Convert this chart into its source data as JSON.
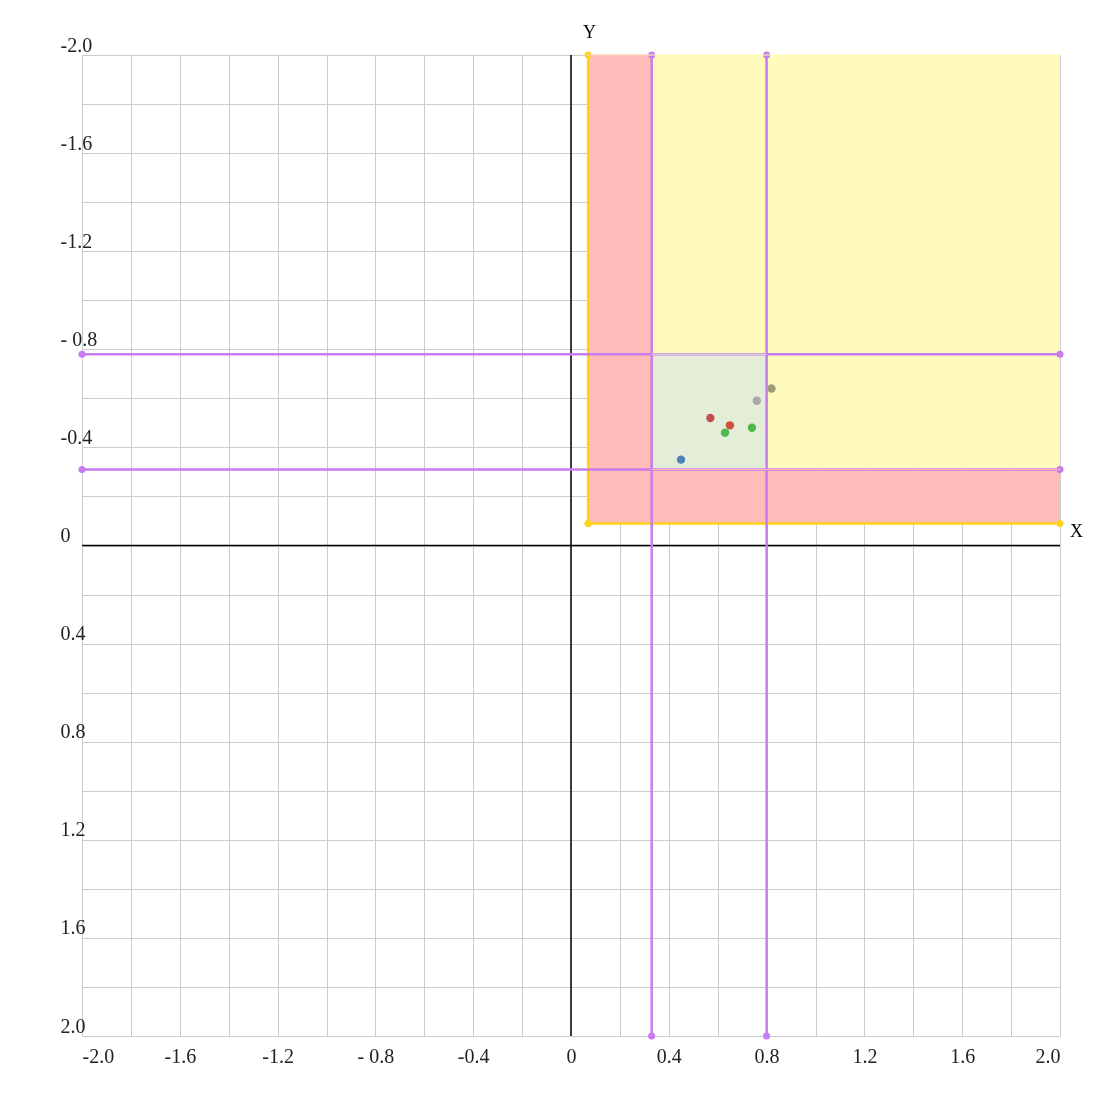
{
  "chart_data": {
    "type": "scatter",
    "xlabel": "X",
    "ylabel": "Y",
    "xlim": [
      -2.0,
      2.0
    ],
    "ylim": [
      2.0,
      -2.0
    ],
    "xticks": [
      {
        "value": -2.0,
        "label": "-2.0"
      },
      {
        "value": -1.8,
        "label": null
      },
      -1.6,
      {
        "value": -1.4,
        "label": null
      },
      -1.2,
      {
        "value": -1.0,
        "label": null
      },
      {
        "value": -0.8,
        "label": "- 0.8"
      },
      {
        "value": -0.6,
        "label": null
      },
      -0.4,
      {
        "value": -0.2,
        "label": null
      },
      0,
      {
        "value": 0.2,
        "label": null
      },
      0.4,
      {
        "value": 0.6,
        "label": null
      },
      0.8,
      {
        "value": 1.0,
        "label": null
      },
      1.2,
      {
        "value": 1.4,
        "label": null
      },
      1.6,
      {
        "value": 1.8,
        "label": null
      },
      {
        "value": 2.0,
        "label": "2.0"
      }
    ],
    "yticks": [
      {
        "value": -2.0,
        "label": "-2.0"
      },
      {
        "value": -1.8,
        "label": null
      },
      -1.6,
      {
        "value": -1.4,
        "label": null
      },
      -1.2,
      {
        "value": -1.0,
        "label": null
      },
      {
        "value": -0.8,
        "label": "- 0.8"
      },
      {
        "value": -0.6,
        "label": null
      },
      -0.4,
      {
        "value": -0.2,
        "label": null
      },
      0,
      {
        "value": 0.2,
        "label": null
      },
      0.4,
      {
        "value": 0.6,
        "label": null
      },
      0.8,
      {
        "value": 1.0,
        "label": null
      },
      1.2,
      {
        "value": 1.4,
        "label": null
      },
      1.6,
      {
        "value": 1.8,
        "label": null
      },
      {
        "value": 2.0,
        "label": "2.0"
      }
    ],
    "grid": true,
    "line_style": "solid",
    "series": [
      {
        "type": "line",
        "color": "#000000",
        "x": [
          0,
          0
        ],
        "values": [
          2.0,
          -2.0
        ]
      },
      {
        "type": "line",
        "color": "#000000",
        "x": [
          -2.0,
          2.0
        ],
        "values": [
          0,
          0
        ]
      },
      {
        "type": "line",
        "color": "#fffbb8",
        "x": [
          0.07,
          2.0
        ],
        "values": [
          -2.0,
          -2.0
        ],
        "lower": [
          -0.09,
          -0.09
        ],
        "upper": [
          -2.0,
          -2.0
        ]
      },
      {
        "type": "line",
        "color": "#ffb8b8",
        "x": [
          0.07,
          0.33
        ],
        "values": [
          -2.0,
          -2.0
        ],
        "lower": [
          -0.09,
          -0.09
        ],
        "upper": [
          -2.0,
          -2.0
        ]
      },
      {
        "type": "line",
        "color": "#ffb8b8",
        "x": [
          0.33,
          2.0
        ],
        "values": [
          -0.31,
          -0.31
        ],
        "lower": [
          -0.09,
          -0.09
        ],
        "upper": [
          -0.31,
          -0.31
        ]
      },
      {
        "type": "line",
        "color": "#e1ecd8",
        "x": [
          0.33,
          0.8
        ],
        "values": [
          -0.78,
          -0.78
        ],
        "lower": [
          -0.31,
          -0.31
        ],
        "upper": [
          -0.78,
          -0.78
        ]
      },
      {
        "type": "line",
        "marker": "circle",
        "color": "#ffd21e",
        "x": [
          0.07,
          0.07
        ],
        "values": [
          -2.0,
          -0.09
        ]
      },
      {
        "type": "line",
        "marker": "circle",
        "color": "#ffd21e",
        "x": [
          0.07,
          2.0
        ],
        "values": [
          -0.09,
          -0.09
        ]
      },
      {
        "type": "line",
        "marker": "circle",
        "color": "#c77ded",
        "x": [
          0.33,
          0.33
        ],
        "values": [
          -2.0,
          2.0
        ]
      },
      {
        "type": "line",
        "marker": "circle",
        "color": "#c77ded",
        "x": [
          0.8,
          0.8
        ],
        "values": [
          -2.0,
          2.0
        ]
      },
      {
        "type": "line",
        "marker": "circle",
        "color": "#c77ded",
        "x": [
          -2.0,
          2.0
        ],
        "values": [
          -0.78,
          -0.78
        ]
      },
      {
        "type": "line",
        "marker": "circle",
        "color": "#c77ded",
        "x": [
          -2.0,
          2.0
        ],
        "values": [
          -0.31,
          -0.31
        ]
      },
      {
        "marker": "circle",
        "x": [
          0.82,
          0.76,
          0.57,
          0.65,
          0.63,
          0.74,
          0.45
        ],
        "values": [
          -0.64,
          -0.59,
          -0.52,
          -0.49,
          -0.46,
          -0.48,
          -0.35
        ],
        "colors": [
          "#9c9a78",
          "#a8a8a8",
          "#c0504d",
          "#d0503c",
          "#4cb84c",
          "#4cb84c",
          "#4f81bd"
        ]
      }
    ]
  }
}
